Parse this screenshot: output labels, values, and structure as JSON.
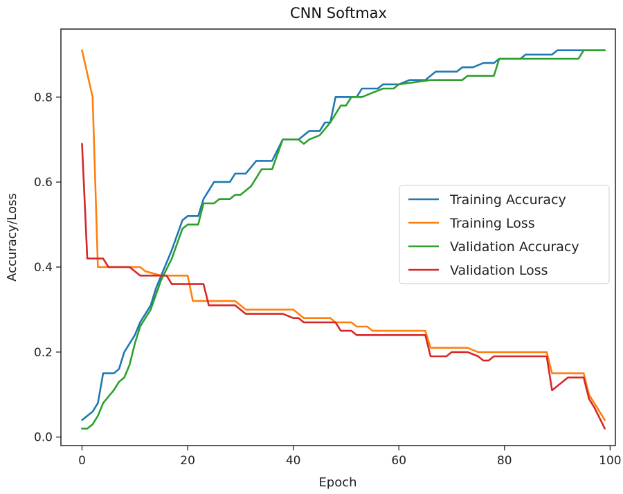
{
  "chart_data": {
    "type": "line",
    "title": "CNN Softmax",
    "xlabel": "Epoch",
    "ylabel": "Accuracy/Loss",
    "xlim": [
      -4,
      101
    ],
    "ylim": [
      -0.02,
      0.96
    ],
    "xticks": [
      0,
      20,
      40,
      60,
      80,
      100
    ],
    "xtick_labels": [
      "0",
      "20",
      "40",
      "60",
      "80",
      "100"
    ],
    "yticks": [
      0.0,
      0.2,
      0.4,
      0.6,
      0.8
    ],
    "ytick_labels": [
      "0.0",
      "0.2",
      "0.4",
      "0.6",
      "0.8"
    ],
    "grid": false,
    "legend_position": "center-right",
    "series": [
      {
        "name": "Training Accuracy",
        "color": "#1f77b4",
        "points": [
          [
            0,
            0.04
          ],
          [
            2,
            0.06
          ],
          [
            3,
            0.08
          ],
          [
            4,
            0.15
          ],
          [
            6,
            0.15
          ],
          [
            7,
            0.16
          ],
          [
            8,
            0.2
          ],
          [
            10,
            0.24
          ],
          [
            11,
            0.27
          ],
          [
            13,
            0.31
          ],
          [
            14,
            0.35
          ],
          [
            15,
            0.38
          ],
          [
            17,
            0.44
          ],
          [
            19,
            0.51
          ],
          [
            20,
            0.52
          ],
          [
            22,
            0.52
          ],
          [
            23,
            0.56
          ],
          [
            25,
            0.6
          ],
          [
            28,
            0.6
          ],
          [
            29,
            0.62
          ],
          [
            31,
            0.62
          ],
          [
            33,
            0.65
          ],
          [
            36,
            0.65
          ],
          [
            38,
            0.7
          ],
          [
            41,
            0.7
          ],
          [
            43,
            0.72
          ],
          [
            45,
            0.72
          ],
          [
            46,
            0.74
          ],
          [
            47,
            0.74
          ],
          [
            48,
            0.8
          ],
          [
            52,
            0.8
          ],
          [
            53,
            0.82
          ],
          [
            56,
            0.82
          ],
          [
            57,
            0.83
          ],
          [
            60,
            0.83
          ],
          [
            62,
            0.84
          ],
          [
            65,
            0.84
          ],
          [
            67,
            0.86
          ],
          [
            71,
            0.86
          ],
          [
            72,
            0.87
          ],
          [
            74,
            0.87
          ],
          [
            76,
            0.88
          ],
          [
            78,
            0.88
          ],
          [
            79,
            0.89
          ],
          [
            83,
            0.89
          ],
          [
            84,
            0.9
          ],
          [
            89,
            0.9
          ],
          [
            90,
            0.91
          ],
          [
            99,
            0.91
          ]
        ]
      },
      {
        "name": "Training Loss",
        "color": "#ff7f0e",
        "points": [
          [
            0,
            0.91
          ],
          [
            2,
            0.8
          ],
          [
            3,
            0.4
          ],
          [
            7,
            0.4
          ],
          [
            9,
            0.4
          ],
          [
            11,
            0.4
          ],
          [
            12,
            0.39
          ],
          [
            15,
            0.38
          ],
          [
            20,
            0.38
          ],
          [
            21,
            0.32
          ],
          [
            23,
            0.32
          ],
          [
            24,
            0.32
          ],
          [
            29,
            0.32
          ],
          [
            31,
            0.3
          ],
          [
            40,
            0.3
          ],
          [
            41,
            0.29
          ],
          [
            42,
            0.28
          ],
          [
            47,
            0.28
          ],
          [
            48,
            0.27
          ],
          [
            51,
            0.27
          ],
          [
            52,
            0.26
          ],
          [
            54,
            0.26
          ],
          [
            55,
            0.25
          ],
          [
            65,
            0.25
          ],
          [
            66,
            0.21
          ],
          [
            73,
            0.21
          ],
          [
            75,
            0.2
          ],
          [
            88,
            0.2
          ],
          [
            89,
            0.15
          ],
          [
            95,
            0.15
          ],
          [
            96,
            0.1
          ],
          [
            97,
            0.08
          ],
          [
            99,
            0.04
          ]
        ]
      },
      {
        "name": "Validation Accuracy",
        "color": "#2ca02c",
        "points": [
          [
            0,
            0.02
          ],
          [
            1,
            0.02
          ],
          [
            2,
            0.03
          ],
          [
            3,
            0.05
          ],
          [
            4,
            0.08
          ],
          [
            6,
            0.11
          ],
          [
            7,
            0.13
          ],
          [
            8,
            0.14
          ],
          [
            9,
            0.17
          ],
          [
            10,
            0.22
          ],
          [
            11,
            0.26
          ],
          [
            13,
            0.3
          ],
          [
            15,
            0.37
          ],
          [
            17,
            0.42
          ],
          [
            19,
            0.49
          ],
          [
            20,
            0.5
          ],
          [
            22,
            0.5
          ],
          [
            23,
            0.55
          ],
          [
            25,
            0.55
          ],
          [
            26,
            0.56
          ],
          [
            28,
            0.56
          ],
          [
            29,
            0.57
          ],
          [
            30,
            0.57
          ],
          [
            32,
            0.59
          ],
          [
            34,
            0.63
          ],
          [
            36,
            0.63
          ],
          [
            38,
            0.7
          ],
          [
            41,
            0.7
          ],
          [
            42,
            0.69
          ],
          [
            43,
            0.7
          ],
          [
            45,
            0.71
          ],
          [
            47,
            0.74
          ],
          [
            49,
            0.78
          ],
          [
            50,
            0.78
          ],
          [
            51,
            0.8
          ],
          [
            53,
            0.8
          ],
          [
            55,
            0.81
          ],
          [
            57,
            0.82
          ],
          [
            59,
            0.82
          ],
          [
            60,
            0.83
          ],
          [
            66,
            0.84
          ],
          [
            72,
            0.84
          ],
          [
            73,
            0.85
          ],
          [
            78,
            0.85
          ],
          [
            79,
            0.89
          ],
          [
            94,
            0.89
          ],
          [
            95,
            0.91
          ],
          [
            99,
            0.91
          ]
        ]
      },
      {
        "name": "Validation Loss",
        "color": "#d62728",
        "points": [
          [
            0,
            0.69
          ],
          [
            1,
            0.42
          ],
          [
            3,
            0.42
          ],
          [
            4,
            0.42
          ],
          [
            5,
            0.4
          ],
          [
            9,
            0.4
          ],
          [
            11,
            0.38
          ],
          [
            16,
            0.38
          ],
          [
            17,
            0.36
          ],
          [
            23,
            0.36
          ],
          [
            24,
            0.31
          ],
          [
            29,
            0.31
          ],
          [
            31,
            0.29
          ],
          [
            38,
            0.29
          ],
          [
            40,
            0.28
          ],
          [
            41,
            0.28
          ],
          [
            42,
            0.27
          ],
          [
            48,
            0.27
          ],
          [
            49,
            0.25
          ],
          [
            51,
            0.25
          ],
          [
            52,
            0.24
          ],
          [
            65,
            0.24
          ],
          [
            66,
            0.19
          ],
          [
            69,
            0.19
          ],
          [
            70,
            0.2
          ],
          [
            73,
            0.2
          ],
          [
            75,
            0.19
          ],
          [
            76,
            0.18
          ],
          [
            77,
            0.18
          ],
          [
            78,
            0.19
          ],
          [
            87,
            0.19
          ],
          [
            88,
            0.19
          ],
          [
            89,
            0.11
          ],
          [
            91,
            0.13
          ],
          [
            92,
            0.14
          ],
          [
            95,
            0.14
          ],
          [
            96,
            0.09
          ],
          [
            97,
            0.07
          ],
          [
            99,
            0.02
          ]
        ]
      }
    ]
  }
}
